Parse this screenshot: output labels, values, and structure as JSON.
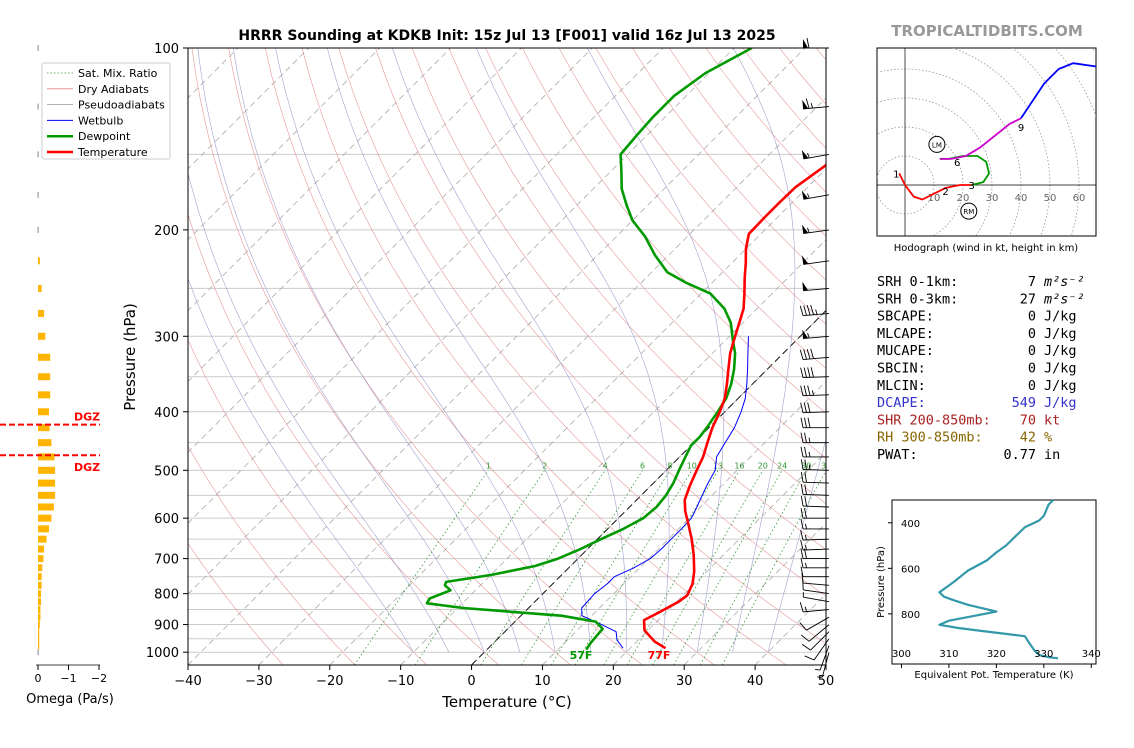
{
  "title": "HRRR Sounding at KDKB Init: 15z Jul 13 [F001] valid 16z Jul 13 2025",
  "watermark": "TROPICALTIDBITS.COM",
  "colors": {
    "temperature": "#ff0000",
    "dewpoint": "#009900",
    "wetbulb": "#0000ff",
    "dry_adiabat": "#e08080",
    "moist_adiabat": "#9999cc",
    "mixing_ratio": "#339933",
    "omega": "#ffb400",
    "dgz": "#ff0000",
    "hodo_low": "#ff0000",
    "hodo_mid": "#009900",
    "hodo_mid2": "#cc00cc",
    "hodo_high": "#0000ff",
    "theta_e": "#3399aa",
    "dcape": "#3333cc",
    "shear": "#aa2222",
    "rh": "#886600"
  },
  "skewt": {
    "xlabel": "Temperature (°C)",
    "ylabel": "Pressure (hPa)",
    "xticks": [
      "−40",
      "−30",
      "−20",
      "−10",
      "0",
      "10",
      "20",
      "30",
      "40",
      "50"
    ],
    "yticks": [
      "100",
      "200",
      "300",
      "400",
      "500",
      "600",
      "700",
      "800",
      "900",
      "1000"
    ],
    "xlim": [
      -40,
      50
    ],
    "ylim": [
      1050,
      100
    ],
    "mixing_ratio_labels": [
      "1",
      "2",
      "4",
      "6",
      "8",
      "10",
      "13",
      "16",
      "20",
      "24",
      "30",
      "36"
    ],
    "surface_dewpoint_label": "57F",
    "surface_temp_label": "77F",
    "legend": [
      "Sat. Mix. Ratio",
      "Dry Adiabats",
      "Pseudoadiabats",
      "Wetbulb",
      "Dewpoint",
      "Temperature"
    ]
  },
  "chart_data": [
    {
      "type": "line",
      "title": "HRRR Sounding at KDKB Init: 15z Jul 13 [F001] valid 16z Jul 13 2025",
      "xlabel": "Temperature (°C)",
      "ylabel": "Pressure (hPa)",
      "xlim": [
        -40,
        50
      ],
      "ylim": [
        1050,
        100
      ],
      "y_scale": "log",
      "series": [
        {
          "name": "Temperature",
          "points": [
            [
              25.0,
              985
            ],
            [
              22.5,
              960
            ],
            [
              19.5,
              920
            ],
            [
              18.0,
              885
            ],
            [
              19.0,
              860
            ],
            [
              20.3,
              825
            ],
            [
              20.6,
              805
            ],
            [
              19.7,
              770
            ],
            [
              18.2,
              735
            ],
            [
              15.8,
              690
            ],
            [
              13.3,
              650
            ],
            [
              10.8,
              615
            ],
            [
              8.5,
              585
            ],
            [
              6.8,
              560
            ],
            [
              5.5,
              530
            ],
            [
              4.3,
              500
            ],
            [
              3.3,
              475
            ],
            [
              1.9,
              450
            ],
            [
              0.5,
              425
            ],
            [
              -0.7,
              400
            ],
            [
              -1.9,
              380
            ],
            [
              -3.6,
              360
            ],
            [
              -5.5,
              340
            ],
            [
              -7.5,
              320
            ],
            [
              -9.2,
              300
            ],
            [
              -10.5,
              285
            ],
            [
              -11.9,
              270
            ],
            [
              -13.9,
              255
            ],
            [
              -16.1,
              240
            ],
            [
              -18.0,
              227
            ],
            [
              -20.0,
              215
            ],
            [
              -21.7,
              203
            ],
            [
              -21.8,
              190
            ],
            [
              -21.8,
              180
            ],
            [
              -21.7,
              170
            ],
            [
              -20.6,
              157
            ],
            [
              -19.7,
              145
            ],
            [
              -17.2,
              135
            ],
            [
              -14.3,
              124
            ],
            [
              -12.6,
              115
            ],
            [
              -11.7,
              111
            ],
            [
              -9.1,
              100
            ]
          ]
        },
        {
          "name": "Dewpoint",
          "points": [
            [
              14.0,
              990
            ],
            [
              13.7,
              965
            ],
            [
              13.5,
              935
            ],
            [
              13.4,
              915
            ],
            [
              11.4,
              890
            ],
            [
              5.7,
              870
            ],
            [
              -9.2,
              845
            ],
            [
              -15.0,
              830
            ],
            [
              -15.3,
              815
            ],
            [
              -13.5,
              790
            ],
            [
              -15.0,
              775
            ],
            [
              -15.3,
              765
            ],
            [
              -10.0,
              745
            ],
            [
              -5.0,
              720
            ],
            [
              -2.8,
              700
            ],
            [
              -1.0,
              675
            ],
            [
              0.5,
              650
            ],
            [
              2.2,
              625
            ],
            [
              3.5,
              600
            ],
            [
              3.8,
              575
            ],
            [
              3.5,
              550
            ],
            [
              2.8,
              525
            ],
            [
              1.8,
              500
            ],
            [
              0.8,
              475
            ],
            [
              0.0,
              455
            ],
            [
              0.0,
              440
            ],
            [
              -0.3,
              425
            ],
            [
              -1.0,
              400
            ],
            [
              -1.7,
              380
            ],
            [
              -3.0,
              360
            ],
            [
              -4.7,
              340
            ],
            [
              -6.8,
              320
            ],
            [
              -8.9,
              305
            ],
            [
              -11.7,
              285
            ],
            [
              -14.6,
              270
            ],
            [
              -18.7,
              255
            ],
            [
              -23.5,
              245
            ],
            [
              -27.8,
              235
            ],
            [
              -32.0,
              220
            ],
            [
              -36.0,
              205
            ],
            [
              -40.0,
              193
            ],
            [
              -43.0,
              182
            ],
            [
              -46.0,
              171
            ],
            [
              -48.5,
              160
            ],
            [
              -51.0,
              150
            ],
            [
              -51.4,
              140
            ],
            [
              -51.7,
              130
            ],
            [
              -51.7,
              120
            ],
            [
              -50.5,
              110
            ],
            [
              -47.5,
              100
            ]
          ]
        },
        {
          "name": "Wetbulb",
          "points": [
            [
              19.0,
              985
            ],
            [
              17.0,
              955
            ],
            [
              15.7,
              925
            ],
            [
              12.0,
              895
            ],
            [
              8.6,
              870
            ],
            [
              7.5,
              845
            ],
            [
              7.3,
              800
            ],
            [
              7.7,
              770
            ],
            [
              7.7,
              750
            ],
            [
              9.2,
              725
            ],
            [
              10.2,
              700
            ],
            [
              10.4,
              675
            ],
            [
              10.4,
              650
            ],
            [
              10.4,
              625
            ],
            [
              10.3,
              600
            ],
            [
              9.5,
              575
            ],
            [
              8.6,
              550
            ],
            [
              7.7,
              525
            ],
            [
              6.9,
              500
            ],
            [
              5.2,
              475
            ],
            [
              4.4,
              450
            ],
            [
              3.6,
              425
            ],
            [
              2.3,
              400
            ],
            [
              1.0,
              380
            ],
            [
              -0.8,
              360
            ],
            [
              -2.8,
              340
            ],
            [
              -5.0,
              320
            ],
            [
              -7.3,
              300
            ]
          ]
        }
      ]
    },
    {
      "type": "bar",
      "title": "",
      "xlabel": "Omega (Pa/s)",
      "xticks": [
        "0",
        "−1",
        "−2"
      ],
      "categories_pressure_hPa": [
        1000,
        975,
        950,
        925,
        900,
        875,
        850,
        825,
        800,
        775,
        750,
        725,
        700,
        675,
        650,
        625,
        600,
        575,
        550,
        525,
        500,
        475,
        450,
        425,
        400,
        375,
        350,
        325,
        300,
        275,
        250,
        225,
        200,
        175,
        150,
        125,
        100
      ],
      "values": [
        0.0,
        0.02,
        0.02,
        0.02,
        0.03,
        0.04,
        0.04,
        0.05,
        0.05,
        0.06,
        0.06,
        0.07,
        0.09,
        0.1,
        0.14,
        0.18,
        0.22,
        0.26,
        0.28,
        0.28,
        0.28,
        0.27,
        0.22,
        0.19,
        0.18,
        0.2,
        0.2,
        0.2,
        0.12,
        0.1,
        0.06,
        0.03,
        0.0,
        0.0,
        0.0,
        0.0,
        0.0
      ],
      "dgz_lines_hPa": [
        420,
        472
      ],
      "dgz_label": "DGZ"
    },
    {
      "type": "line",
      "title": "",
      "xlabel": "Hodograph (wind in kt, height in km)",
      "ring_labels": [
        "10",
        "20",
        "30",
        "40",
        "50",
        "60"
      ],
      "height_labels": [
        "1",
        "2",
        "3",
        "6",
        "9"
      ],
      "markers": [
        "LM",
        "RM"
      ],
      "series": [
        {
          "name": "0-3 km",
          "points": [
            [
              -2,
              4
            ],
            [
              0,
              0
            ],
            [
              3,
              -4
            ],
            [
              6,
              -5
            ],
            [
              10,
              -3
            ],
            [
              14,
              -1
            ],
            [
              19,
              0
            ],
            [
              23,
              0
            ]
          ]
        },
        {
          "name": "3-6 km",
          "points": [
            [
              23,
              0
            ],
            [
              27,
              1
            ],
            [
              29,
              4
            ],
            [
              28,
              8
            ],
            [
              25,
              10
            ],
            [
              20,
              10
            ],
            [
              15,
              9
            ],
            [
              12,
              9
            ]
          ]
        },
        {
          "name": "6-9 km",
          "points": [
            [
              12,
              9
            ],
            [
              16,
              9
            ],
            [
              21,
              10
            ],
            [
              26,
              13
            ],
            [
              31,
              17
            ],
            [
              36,
              21
            ],
            [
              40,
              23
            ]
          ]
        },
        {
          "name": "9+ km",
          "points": [
            [
              40,
              23
            ],
            [
              44,
              29
            ],
            [
              48,
              35
            ],
            [
              53,
              40
            ],
            [
              58,
              42
            ],
            [
              65,
              41
            ],
            [
              72,
              40
            ],
            [
              78,
              38
            ]
          ]
        }
      ]
    },
    {
      "type": "line",
      "title": "",
      "xlabel": "Equivalent Pot. Temperature (K)",
      "ylabel": "Pressure (hPa)",
      "xticks": [
        "300",
        "310",
        "320",
        "330",
        "340"
      ],
      "yticks": [
        "400",
        "600",
        "800"
      ],
      "xlim": [
        298,
        341
      ],
      "ylim": [
        1020,
        300
      ],
      "series": [
        {
          "name": "Theta-E",
          "points": [
            [
              332.0,
              300
            ],
            [
              331.0,
              320
            ],
            [
              330.0,
              370
            ],
            [
              329.0,
              390
            ],
            [
              326.0,
              420
            ],
            [
              325.0,
              440
            ],
            [
              324.0,
              460
            ],
            [
              322.0,
              500
            ],
            [
              320.0,
              530
            ],
            [
              318.0,
              565
            ],
            [
              314.0,
              610
            ],
            [
              311.0,
              660
            ],
            [
              308.0,
              705
            ],
            [
              309.0,
              725
            ],
            [
              311.0,
              740
            ],
            [
              314.0,
              760
            ],
            [
              320.0,
              790
            ],
            [
              315.0,
              810
            ],
            [
              310.0,
              830
            ],
            [
              308.0,
              848
            ],
            [
              312.0,
              862
            ],
            [
              317.0,
              875
            ],
            [
              322.0,
              888
            ],
            [
              326.0,
              898
            ],
            [
              327.0,
              930
            ],
            [
              328.0,
              960
            ],
            [
              329.0,
              980
            ],
            [
              331.0,
              990
            ],
            [
              333.0,
              995
            ]
          ]
        }
      ]
    }
  ],
  "indices": {
    "rows": [
      {
        "label": "SRH 0-1km:",
        "value": "7",
        "unit": "m²s⁻²"
      },
      {
        "label": "SRH 0-3km:",
        "value": "27",
        "unit": "m²s⁻²"
      },
      {
        "label": "SBCAPE:",
        "value": "0",
        "unit": "J/kg"
      },
      {
        "label": "MLCAPE:",
        "value": "0",
        "unit": "J/kg"
      },
      {
        "label": "MUCAPE:",
        "value": "0",
        "unit": "J/kg"
      },
      {
        "label": "SBCIN:",
        "value": "0",
        "unit": "J/kg"
      },
      {
        "label": "MLCIN:",
        "value": "0",
        "unit": "J/kg"
      },
      {
        "label": "DCAPE:",
        "value": "549",
        "unit": "J/kg"
      },
      {
        "label": "SHR 200-850mb:",
        "value": "70",
        "unit": "kt"
      },
      {
        "label": "RH 300-850mb:",
        "value": "42",
        "unit": "%"
      },
      {
        "label": "PWAT:",
        "value": "0.77",
        "unit": "in"
      }
    ]
  },
  "winds": [
    {
      "p": 100,
      "dir": 270,
      "spd": 60
    },
    {
      "p": 125,
      "dir": 265,
      "spd": 65
    },
    {
      "p": 150,
      "dir": 260,
      "spd": 55
    },
    {
      "p": 175,
      "dir": 260,
      "spd": 55
    },
    {
      "p": 200,
      "dir": 262,
      "spd": 55
    },
    {
      "p": 225,
      "dir": 262,
      "spd": 50
    },
    {
      "p": 250,
      "dir": 265,
      "spd": 50
    },
    {
      "p": 275,
      "dir": 265,
      "spd": 45
    },
    {
      "p": 300,
      "dir": 265,
      "spd": 55
    },
    {
      "p": 325,
      "dir": 265,
      "spd": 40
    },
    {
      "p": 350,
      "dir": 268,
      "spd": 40
    },
    {
      "p": 375,
      "dir": 268,
      "spd": 35
    },
    {
      "p": 400,
      "dir": 268,
      "spd": 30
    },
    {
      "p": 425,
      "dir": 270,
      "spd": 30
    },
    {
      "p": 450,
      "dir": 270,
      "spd": 25
    },
    {
      "p": 475,
      "dir": 270,
      "spd": 25
    },
    {
      "p": 500,
      "dir": 272,
      "spd": 25
    },
    {
      "p": 525,
      "dir": 272,
      "spd": 20
    },
    {
      "p": 550,
      "dir": 272,
      "spd": 20
    },
    {
      "p": 575,
      "dir": 272,
      "spd": 20
    },
    {
      "p": 600,
      "dir": 270,
      "spd": 20
    },
    {
      "p": 625,
      "dir": 270,
      "spd": 15
    },
    {
      "p": 650,
      "dir": 268,
      "spd": 15
    },
    {
      "p": 675,
      "dir": 268,
      "spd": 15
    },
    {
      "p": 700,
      "dir": 270,
      "spd": 20
    },
    {
      "p": 725,
      "dir": 270,
      "spd": 15
    },
    {
      "p": 750,
      "dir": 270,
      "spd": 10
    },
    {
      "p": 775,
      "dir": 275,
      "spd": 10
    },
    {
      "p": 800,
      "dir": 278,
      "spd": 10
    },
    {
      "p": 825,
      "dir": 280,
      "spd": 5
    },
    {
      "p": 850,
      "dir": 265,
      "spd": 15
    },
    {
      "p": 875,
      "dir": 240,
      "spd": 10
    },
    {
      "p": 900,
      "dir": 230,
      "spd": 10
    },
    {
      "p": 925,
      "dir": 225,
      "spd": 10
    },
    {
      "p": 950,
      "dir": 215,
      "spd": 10
    },
    {
      "p": 975,
      "dir": 200,
      "spd": 5
    },
    {
      "p": 1000,
      "dir": 195,
      "spd": 5
    }
  ]
}
